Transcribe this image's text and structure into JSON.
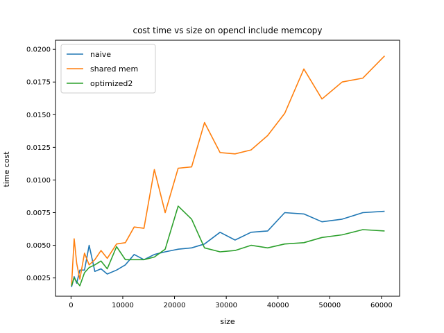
{
  "chart_data": {
    "type": "line",
    "title": "cost time vs size on opencl include memcopy",
    "xlabel": "size",
    "ylabel": "time cost",
    "xlim": [
      -3000,
      63500
    ],
    "ylim": [
      0.0011,
      0.0207
    ],
    "xticks": [
      0,
      10000,
      20000,
      30000,
      40000,
      50000,
      60000
    ],
    "xtick_labels": [
      "0",
      "10000",
      "20000",
      "30000",
      "40000",
      "50000",
      "60000"
    ],
    "yticks": [
      0.0025,
      0.005,
      0.0075,
      0.01,
      0.0125,
      0.015,
      0.0175,
      0.02
    ],
    "ytick_labels": [
      "0.0025",
      "0.0050",
      "0.0075",
      "0.0100",
      "0.0125",
      "0.0150",
      "0.0175",
      "0.0200"
    ],
    "grid": false,
    "legend_position": "top-left",
    "series": [
      {
        "name": "naive",
        "color": "#1f77b4",
        "x": [
          100,
          600,
          1100,
          1700,
          2600,
          3500,
          4600,
          5800,
          7000,
          8800,
          10500,
          12200,
          14100,
          16100,
          18200,
          20700,
          23300,
          25800,
          28800,
          31700,
          34800,
          38000,
          41300,
          45000,
          48500,
          52400,
          56400,
          60600
        ],
        "y": [
          0.0018,
          0.0026,
          0.0021,
          0.0031,
          0.0031,
          0.005,
          0.003,
          0.0032,
          0.0028,
          0.0031,
          0.0035,
          0.0043,
          0.0039,
          0.0043,
          0.0045,
          0.0047,
          0.0048,
          0.0051,
          0.006,
          0.0054,
          0.006,
          0.0061,
          0.0075,
          0.0074,
          0.0068,
          0.007,
          0.0075,
          0.0076
        ]
      },
      {
        "name": "shared mem",
        "color": "#ff7f0e",
        "x": [
          100,
          600,
          1100,
          1700,
          2600,
          3500,
          4600,
          5800,
          7000,
          8800,
          10500,
          12200,
          14100,
          16100,
          18200,
          20700,
          23300,
          25800,
          28800,
          31700,
          34800,
          38000,
          41300,
          45000,
          48500,
          52400,
          56400,
          60600
        ],
        "y": [
          0.0019,
          0.0055,
          0.0036,
          0.0024,
          0.0044,
          0.0035,
          0.0039,
          0.0046,
          0.004,
          0.0051,
          0.0052,
          0.0064,
          0.0063,
          0.0108,
          0.0075,
          0.0109,
          0.011,
          0.0144,
          0.0121,
          0.012,
          0.0123,
          0.0134,
          0.0151,
          0.0185,
          0.0162,
          0.0175,
          0.0178,
          0.0195
        ]
      },
      {
        "name": "optimized2",
        "color": "#2ca02c",
        "x": [
          100,
          600,
          1100,
          1700,
          2600,
          3500,
          4600,
          5800,
          7000,
          8800,
          10500,
          12200,
          14100,
          16100,
          18200,
          20700,
          23300,
          25800,
          28800,
          31700,
          34800,
          38000,
          41300,
          45000,
          48500,
          52400,
          56400,
          60600
        ],
        "y": [
          0.0019,
          0.0025,
          0.0022,
          0.0019,
          0.0029,
          0.0033,
          0.0035,
          0.0038,
          0.0032,
          0.0049,
          0.0039,
          0.0039,
          0.0039,
          0.0041,
          0.0047,
          0.008,
          0.007,
          0.0048,
          0.0045,
          0.0046,
          0.005,
          0.0048,
          0.0051,
          0.0052,
          0.0056,
          0.0058,
          0.0062,
          0.0061
        ]
      }
    ]
  }
}
